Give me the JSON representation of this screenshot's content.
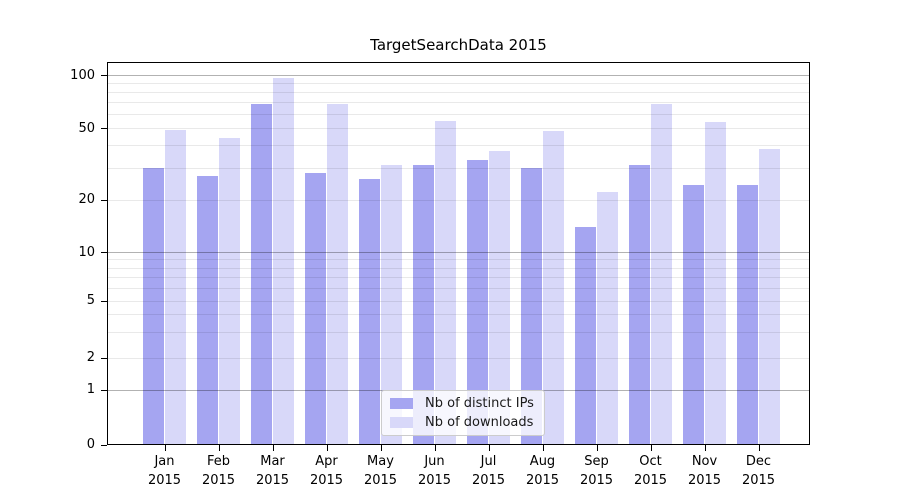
{
  "chart_data": {
    "type": "bar",
    "title": "TargetSearchData 2015",
    "categories": [
      "Jan",
      "Feb",
      "Mar",
      "Apr",
      "May",
      "Jun",
      "Jul",
      "Aug",
      "Sep",
      "Oct",
      "Nov",
      "Dec"
    ],
    "year_label": "2015",
    "series": [
      {
        "name": "Nb of distinct IPs",
        "color": "#a5a5f1",
        "values": [
          30,
          27,
          68,
          28,
          26,
          31,
          33,
          30,
          14,
          31,
          24,
          24
        ]
      },
      {
        "name": "Nb of downloads",
        "color": "#d8d8f9",
        "values": [
          49,
          44,
          96,
          68,
          31,
          55,
          37,
          48,
          22,
          68,
          54,
          38
        ]
      }
    ],
    "y_ticks": [
      0,
      1,
      2,
      5,
      10,
      20,
      50,
      100
    ],
    "y_decade_gridlines": [
      1,
      10,
      100
    ],
    "y_minor_gridlines": [
      2,
      3,
      4,
      5,
      6,
      7,
      8,
      9,
      20,
      30,
      40,
      50,
      60,
      70,
      80,
      90
    ],
    "ylim": [
      0,
      110
    ],
    "xlabel": "",
    "ylabel": "",
    "grid": true,
    "legend_position": "lower center",
    "axis_scale": "symlog-like (0,1,2,5,10,20,50,100)",
    "colors": {
      "distinct_ips_bar": "#a5a5f1",
      "downloads_bar": "#d8d8f9",
      "decade_gridline": "#b2b2b2",
      "minor_gridline": "#e9e9e9",
      "axis": "#000000",
      "legend_border": "#cccccc"
    }
  }
}
